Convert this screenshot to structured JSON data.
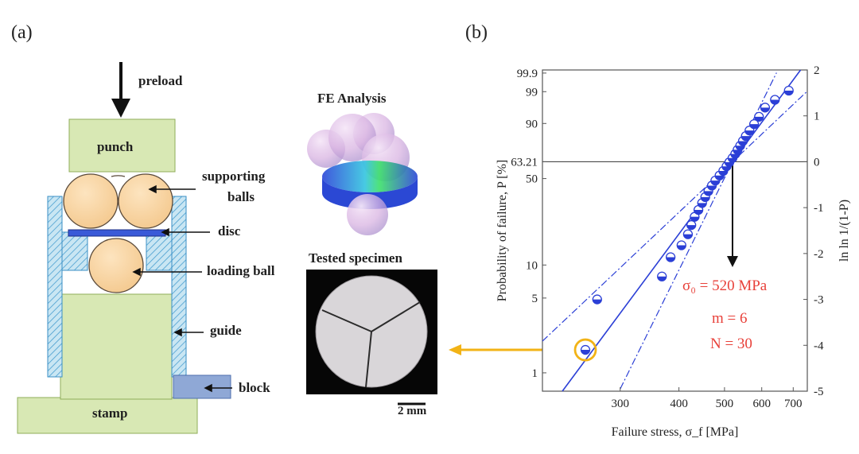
{
  "panel_a": {
    "label": "(a)",
    "parts": {
      "preload": "preload",
      "punch": "punch",
      "supporting_balls_line1": "supporting",
      "supporting_balls_line2": "balls",
      "disc": "disc",
      "loading_ball": "loading ball",
      "guide": "guide",
      "block": "block",
      "stamp": "stamp"
    },
    "fe_analysis_title": "FE Analysis",
    "tested_specimen_title": "Tested specimen",
    "scale_bar": "2 mm"
  },
  "panel_b": {
    "label": "(b)",
    "chart_data": {
      "type": "scatter",
      "xlabel": "Failure stress, σ_f [MPa]",
      "ylabel_left": "Probability of failure, P [%]",
      "ylabel_right": "ln ln 1/(1-P)",
      "x_scale": "log",
      "x_ticks": [
        300,
        400,
        500,
        600,
        700
      ],
      "x_tick_labels": [
        "300",
        "400",
        "500",
        "600",
        "700"
      ],
      "xlim": [
        205,
        750
      ],
      "y_right_ticks": [
        2,
        1,
        0,
        -1,
        -2,
        -3,
        -4,
        -5
      ],
      "y_right_tick_labels": [
        "2",
        "1",
        "0",
        "-1",
        "-2",
        "-3",
        "-4",
        "-5"
      ],
      "ylim_lnln": [
        -5,
        2
      ],
      "y_left_ticks_percent": [
        99.9,
        99,
        90,
        63.21,
        50,
        10,
        5,
        1
      ],
      "y_left_tick_labels": [
        "99.9",
        "99",
        "90",
        "63.21",
        "50",
        "10",
        "5",
        "1"
      ],
      "reference_line_lnln": 0,
      "weibull_fit": {
        "sigma0": 520,
        "m": 6
      },
      "annotations": {
        "sigma0_text": "σ₀ = 520 MPa",
        "m_text": "m = 6",
        "n_text": "N = 30"
      },
      "accent_color": "#e8413a",
      "marker_color": "#2b3fd6",
      "highlight_color": "#f2b316",
      "series": [
        {
          "points": [
            {
              "x": 253,
              "y": -4.1
            },
            {
              "x": 268,
              "y": -3.0
            },
            {
              "x": 368,
              "y": -2.5
            },
            {
              "x": 384,
              "y": -2.08
            },
            {
              "x": 405,
              "y": -1.82
            },
            {
              "x": 418,
              "y": -1.58
            },
            {
              "x": 425,
              "y": -1.38
            },
            {
              "x": 432,
              "y": -1.2
            },
            {
              "x": 440,
              "y": -1.05
            },
            {
              "x": 448,
              "y": -0.9
            },
            {
              "x": 455,
              "y": -0.77
            },
            {
              "x": 462,
              "y": -0.64
            },
            {
              "x": 470,
              "y": -0.52
            },
            {
              "x": 478,
              "y": -0.41
            },
            {
              "x": 488,
              "y": -0.3
            },
            {
              "x": 497,
              "y": -0.2
            },
            {
              "x": 505,
              "y": -0.1
            },
            {
              "x": 512,
              "y": -0.01
            },
            {
              "x": 520,
              "y": 0.08
            },
            {
              "x": 527,
              "y": 0.17
            },
            {
              "x": 533,
              "y": 0.26
            },
            {
              "x": 540,
              "y": 0.35
            },
            {
              "x": 547,
              "y": 0.45
            },
            {
              "x": 555,
              "y": 0.56
            },
            {
              "x": 565,
              "y": 0.68
            },
            {
              "x": 578,
              "y": 0.82
            },
            {
              "x": 592,
              "y": 0.98
            },
            {
              "x": 610,
              "y": 1.18
            },
            {
              "x": 640,
              "y": 1.35
            },
            {
              "x": 685,
              "y": 1.55
            }
          ]
        }
      ]
    }
  }
}
